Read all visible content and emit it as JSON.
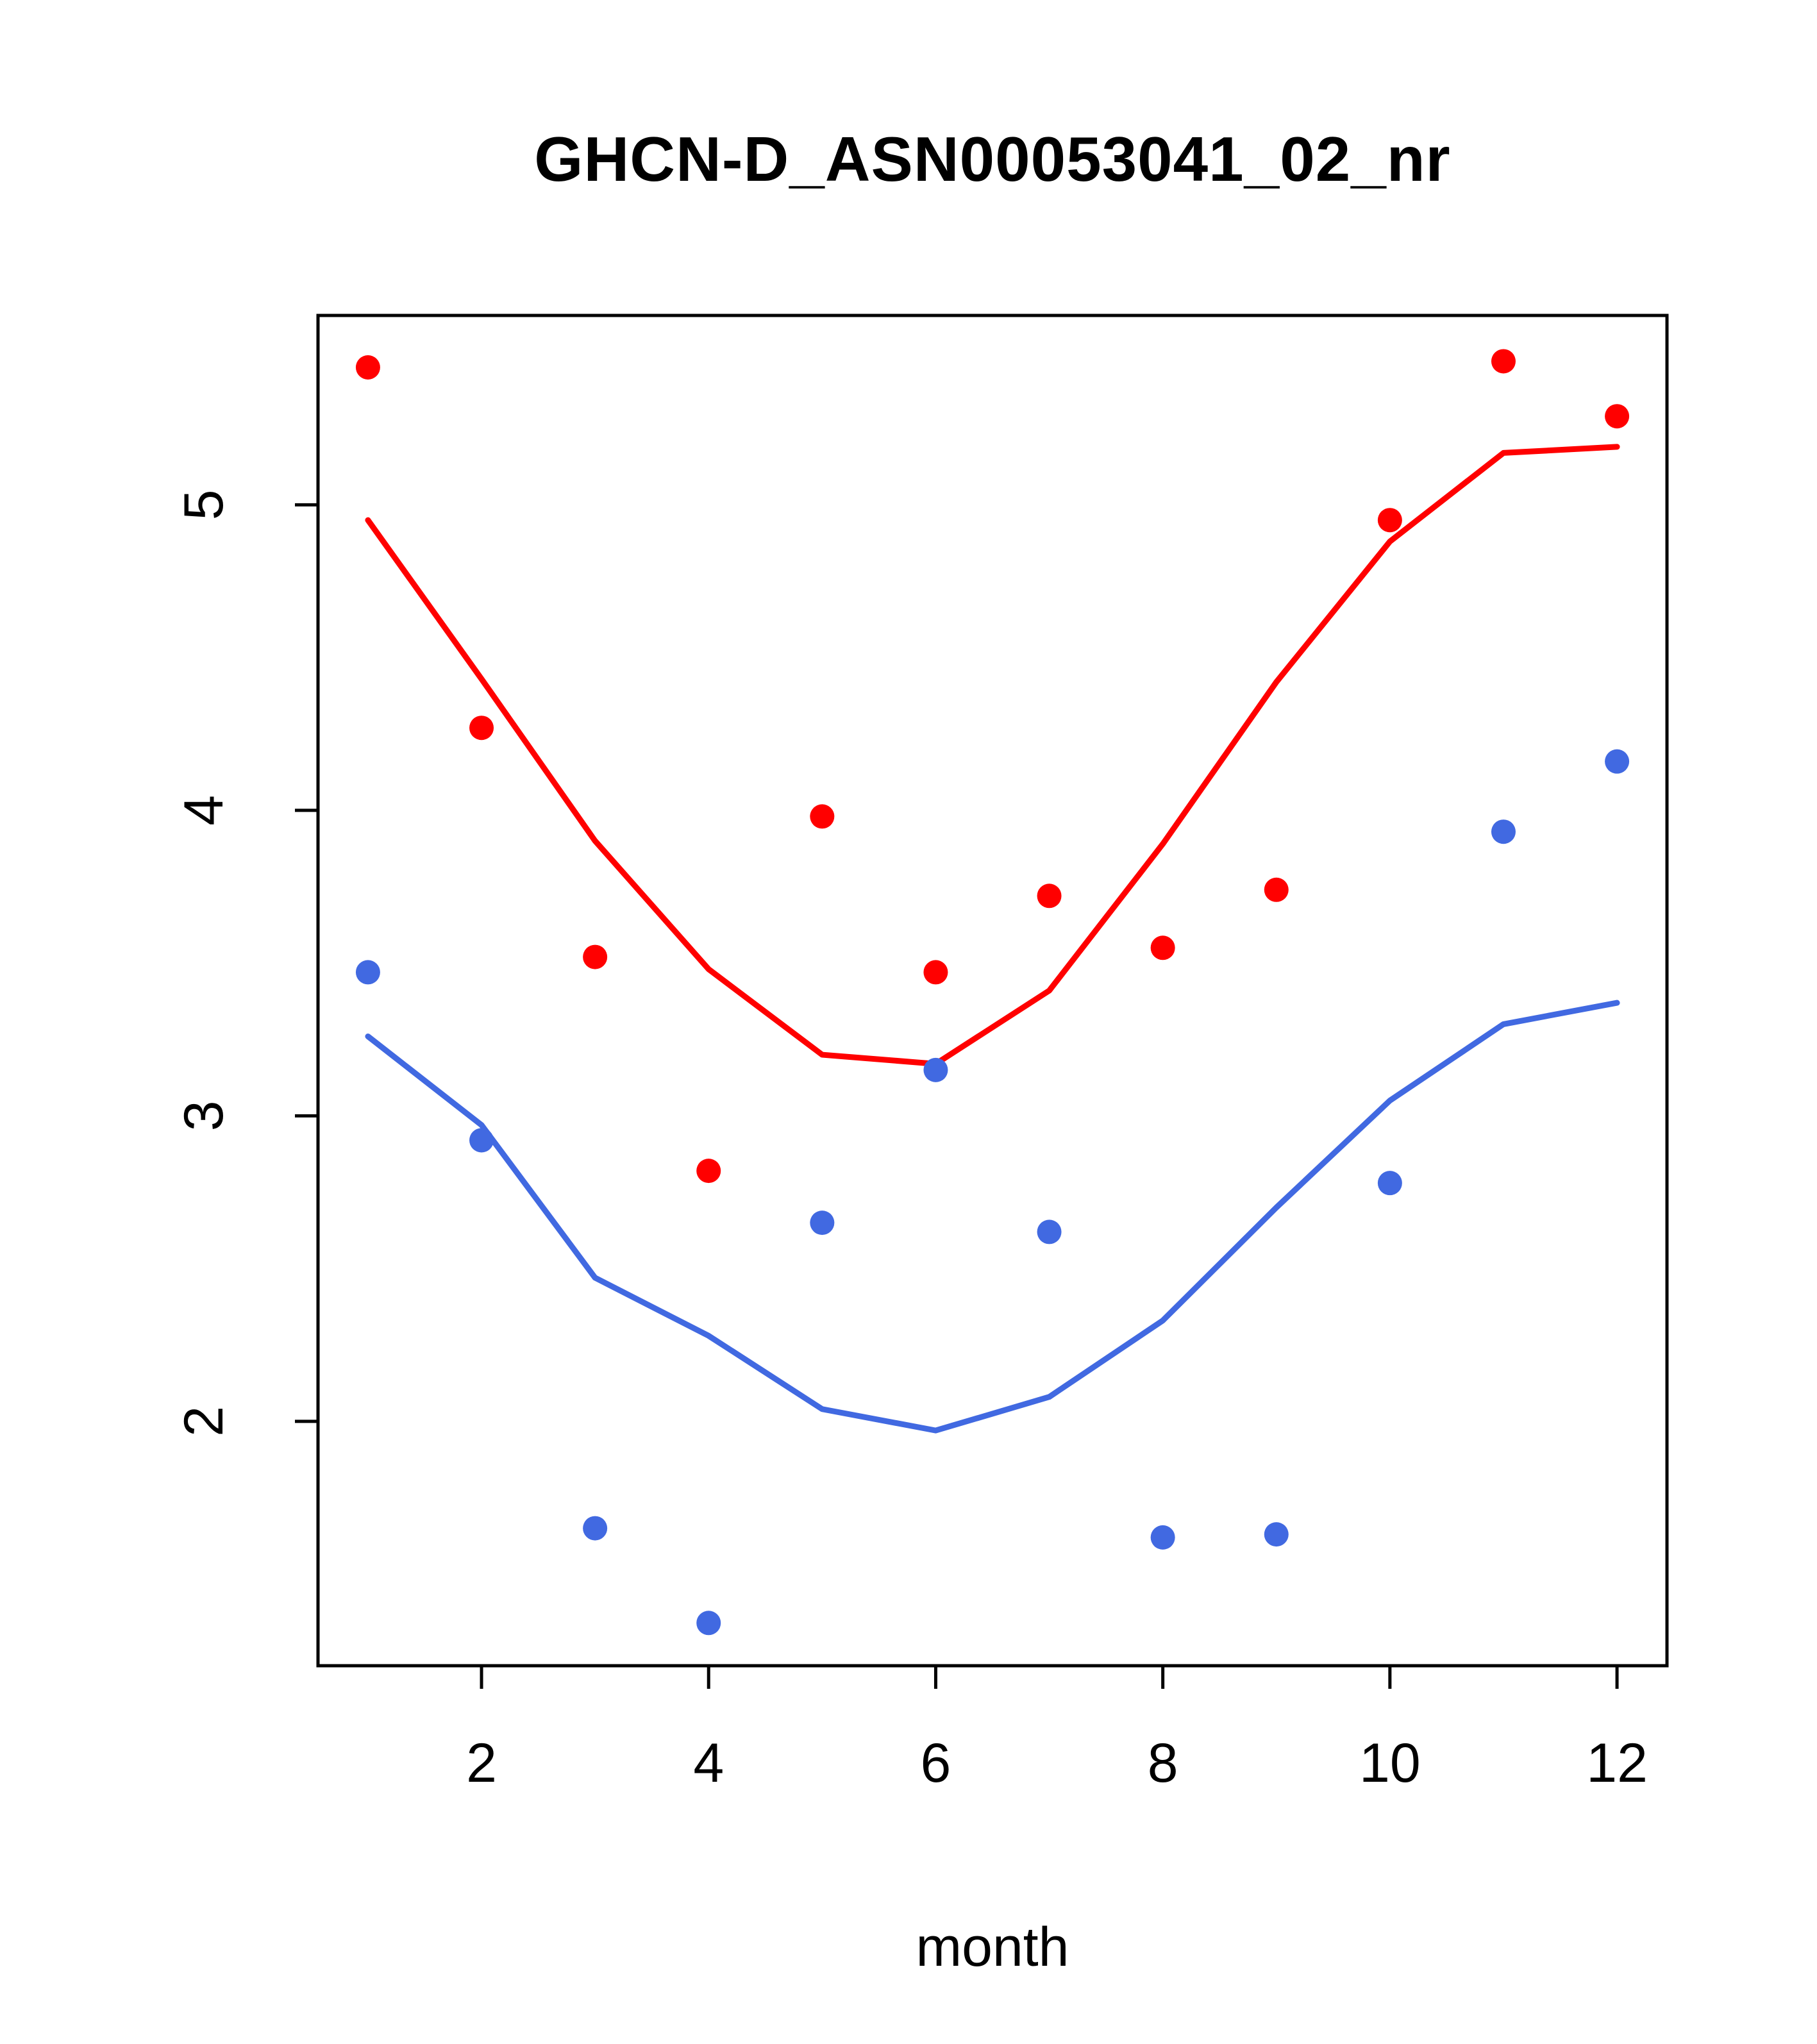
{
  "chart_data": {
    "type": "scatter",
    "title": "GHCN-D_ASN00053041_02_nr",
    "xlabel": "month",
    "ylabel": "",
    "x": [
      1,
      2,
      3,
      4,
      5,
      6,
      7,
      8,
      9,
      10,
      11,
      12
    ],
    "xlim": [
      0.56,
      12.44
    ],
    "ylim": [
      1.2,
      5.62
    ],
    "x_ticks": [
      2,
      4,
      6,
      8,
      10,
      12
    ],
    "y_ticks": [
      2,
      3,
      4,
      5
    ],
    "grid": false,
    "legend": "none",
    "series": [
      {
        "name": "upper-smooth-line",
        "type": "line",
        "color": "#ff0000",
        "values": [
          4.95,
          4.43,
          3.9,
          3.48,
          3.2,
          3.17,
          3.41,
          3.89,
          4.42,
          4.88,
          5.17,
          5.19
        ]
      },
      {
        "name": "lower-smooth-line",
        "type": "line",
        "color": "#4169e1",
        "values": [
          3.26,
          2.97,
          2.47,
          2.28,
          2.04,
          1.97,
          2.08,
          2.33,
          2.7,
          3.05,
          3.3,
          3.37
        ]
      },
      {
        "name": "upper-points",
        "type": "points",
        "color": "#ff0000",
        "values": [
          5.45,
          4.27,
          3.52,
          2.82,
          3.98,
          3.47,
          3.72,
          3.55,
          3.74,
          4.95,
          5.47,
          5.29
        ]
      },
      {
        "name": "lower-points",
        "type": "points",
        "color": "#4169e1",
        "values": [
          3.47,
          2.92,
          1.65,
          1.34,
          2.65,
          3.15,
          2.62,
          1.62,
          1.63,
          2.78,
          3.93,
          4.16
        ]
      }
    ],
    "colors": {
      "axis": "#000000",
      "red_series": "#ff0000",
      "blue_series": "#4169e1",
      "background": "#ffffff"
    }
  }
}
